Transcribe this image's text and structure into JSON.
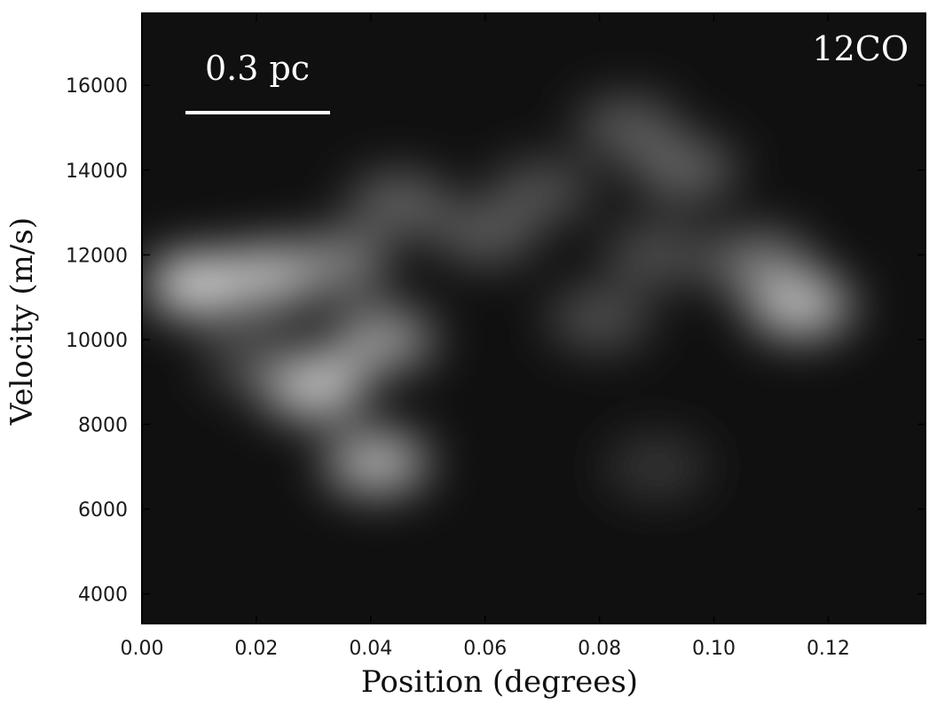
{
  "chart_data": {
    "type": "heatmap",
    "title": "",
    "xlabel": "Position (degrees)",
    "ylabel": "Velocity (m/s)",
    "xlim": [
      0.0,
      0.137
    ],
    "ylim": [
      3300,
      17700
    ],
    "x_ticks": [
      0.0,
      0.02,
      0.04,
      0.06,
      0.08,
      0.1,
      0.12
    ],
    "x_tick_labels": [
      "0.00",
      "0.02",
      "0.04",
      "0.06",
      "0.08",
      "0.10",
      "0.12"
    ],
    "y_ticks": [
      4000,
      6000,
      8000,
      10000,
      12000,
      14000,
      16000
    ],
    "y_tick_labels": [
      "4000",
      "6000",
      "8000",
      "10000",
      "12000",
      "14000",
      "16000"
    ],
    "colormap": "grayscale",
    "background_color": "#101010",
    "annotations": {
      "molecule_label": "12CO",
      "scale_bar_label": "0.3 pc",
      "scale_bar_color": "#ffffff"
    },
    "emission_features": [
      {
        "x": 0.01,
        "y": 11300,
        "intensity": 0.95
      },
      {
        "x": 0.022,
        "y": 11500,
        "intensity": 0.85
      },
      {
        "x": 0.034,
        "y": 11800,
        "intensity": 0.6
      },
      {
        "x": 0.03,
        "y": 8900,
        "intensity": 0.9
      },
      {
        "x": 0.042,
        "y": 10000,
        "intensity": 0.7
      },
      {
        "x": 0.041,
        "y": 7100,
        "intensity": 0.8
      },
      {
        "x": 0.045,
        "y": 13200,
        "intensity": 0.45
      },
      {
        "x": 0.06,
        "y": 12500,
        "intensity": 0.4
      },
      {
        "x": 0.07,
        "y": 13500,
        "intensity": 0.35
      },
      {
        "x": 0.085,
        "y": 15000,
        "intensity": 0.4
      },
      {
        "x": 0.09,
        "y": 12000,
        "intensity": 0.35
      },
      {
        "x": 0.08,
        "y": 10500,
        "intensity": 0.35
      },
      {
        "x": 0.095,
        "y": 14000,
        "intensity": 0.45
      },
      {
        "x": 0.115,
        "y": 10800,
        "intensity": 0.85
      },
      {
        "x": 0.108,
        "y": 11800,
        "intensity": 0.55
      },
      {
        "x": 0.09,
        "y": 7000,
        "intensity": 0.2
      },
      {
        "x": 0.02,
        "y": 9500,
        "intensity": 0.35
      }
    ]
  }
}
